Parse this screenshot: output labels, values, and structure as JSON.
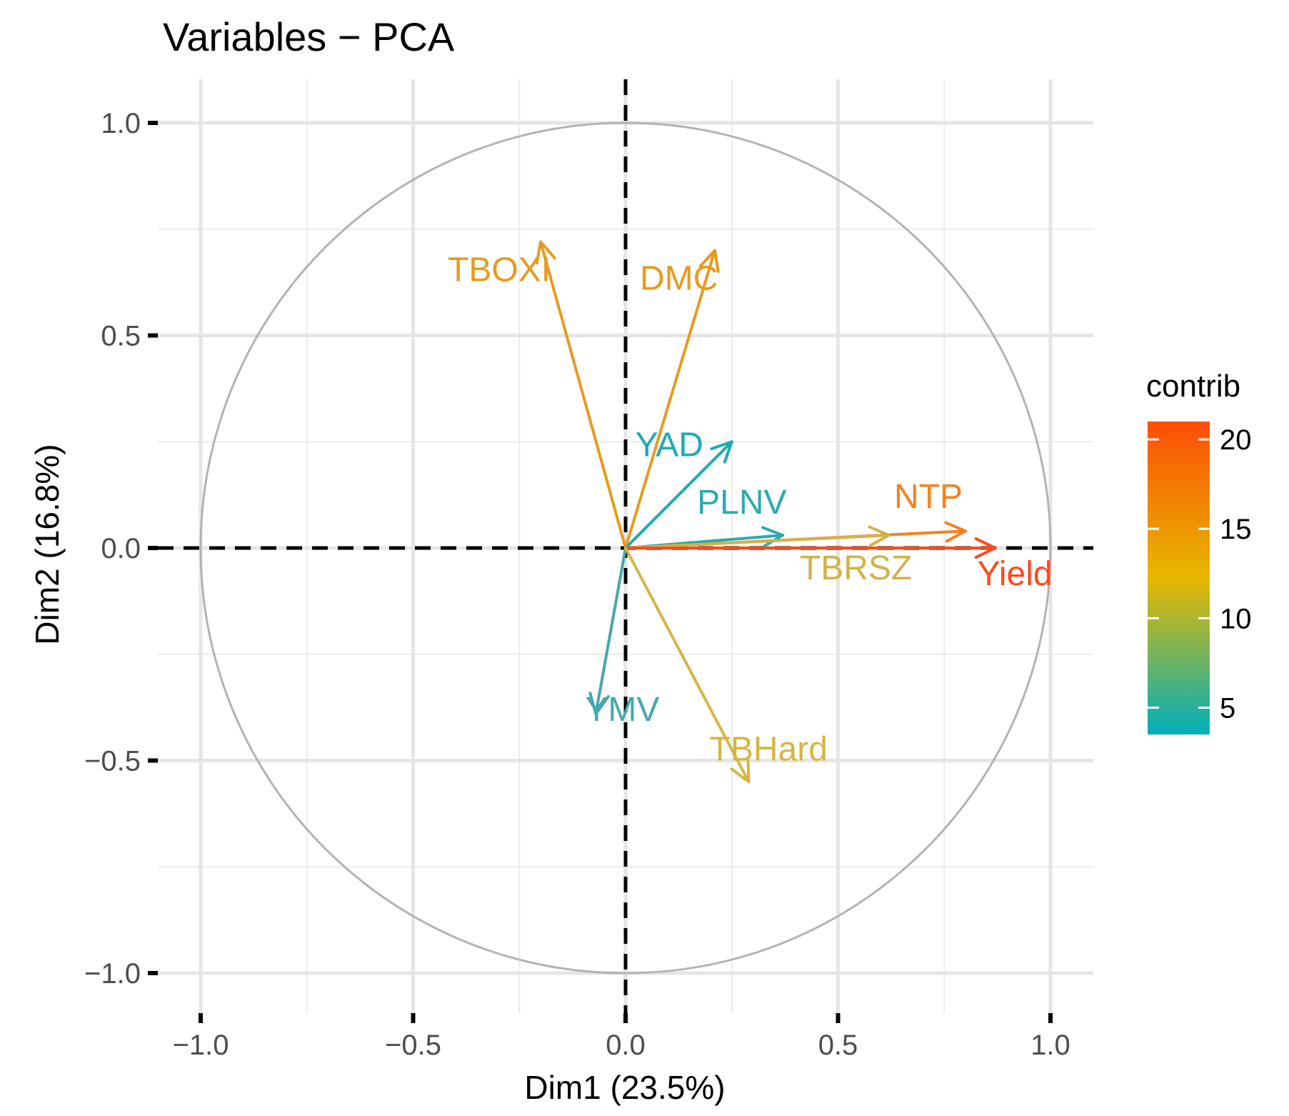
{
  "chart_data": {
    "type": "pca-variable-correlation-circle",
    "title": "Variables − PCA",
    "xlabel": "Dim1 (23.5%)",
    "ylabel": "Dim2 (16.8%)",
    "xlim": [
      -1.1,
      1.1
    ],
    "ylim": [
      -1.1,
      1.1
    ],
    "x_ticks": [
      -1.0,
      -0.5,
      0.0,
      0.5,
      1.0
    ],
    "y_ticks": [
      -1.0,
      -0.5,
      0.0,
      0.5,
      1.0
    ],
    "x_tick_labels": [
      "−1.0",
      "−0.5",
      "0.0",
      "0.5",
      "1.0"
    ],
    "y_tick_labels": [
      "−1.0",
      "−0.5",
      "0.0",
      "0.5",
      "1.0"
    ],
    "grid": true,
    "unit_circle": true,
    "variables": [
      {
        "name": "TBOXI",
        "x": -0.2,
        "y": 0.72,
        "contrib": 14.5,
        "color": "#E89A1F"
      },
      {
        "name": "DMC",
        "x": 0.21,
        "y": 0.7,
        "contrib": 14.8,
        "color": "#E89A1F"
      },
      {
        "name": "YAD",
        "x": 0.25,
        "y": 0.25,
        "contrib": 4.0,
        "color": "#1FAAB4"
      },
      {
        "name": "PLNV",
        "x": 0.37,
        "y": 0.03,
        "contrib": 4.5,
        "color": "#2AABB0"
      },
      {
        "name": "NTP",
        "x": 0.8,
        "y": 0.04,
        "contrib": 17.5,
        "color": "#F5821F"
      },
      {
        "name": "TBRSZ",
        "x": 0.62,
        "y": 0.03,
        "contrib": 11.0,
        "color": "#D2B24A"
      },
      {
        "name": "Yield",
        "x": 0.87,
        "y": 0.0,
        "contrib": 20.0,
        "color": "#FF4A1C"
      },
      {
        "name": "YMV",
        "x": -0.07,
        "y": -0.39,
        "contrib": 5.5,
        "color": "#45A8AD"
      },
      {
        "name": "TBHard",
        "x": 0.29,
        "y": -0.55,
        "contrib": 10.5,
        "color": "#D6B545"
      }
    ],
    "legend": {
      "title": "contrib",
      "position": "right",
      "range": [
        3.5,
        21
      ],
      "ticks": [
        5,
        10,
        15,
        20
      ],
      "tick_labels": [
        "5",
        "10",
        "15",
        "20"
      ],
      "gradient_colors": [
        "#00AFBB",
        "#E7B800",
        "#FC4E07"
      ]
    }
  }
}
